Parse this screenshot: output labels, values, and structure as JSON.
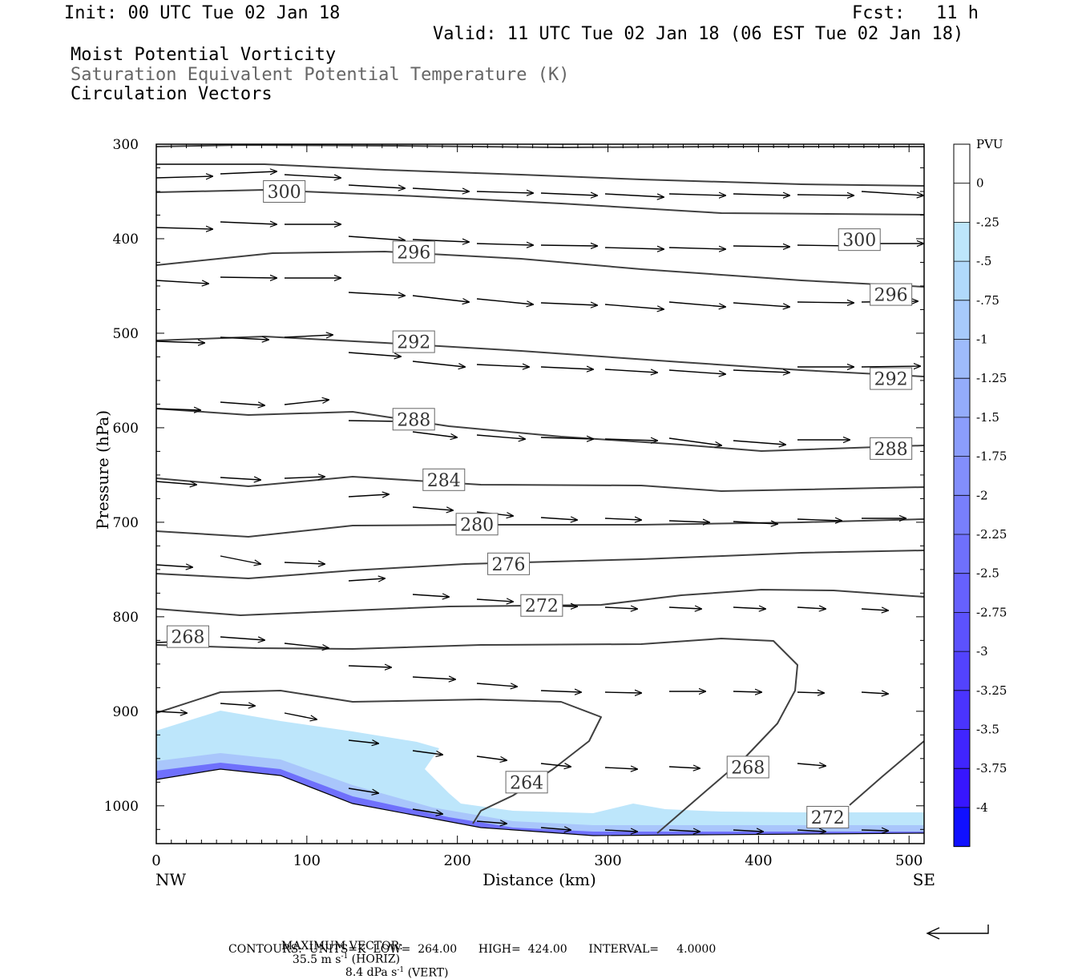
{
  "header": {
    "init": "Init: 00 UTC Tue 02 Jan 18",
    "fcst_label": "Fcst:",
    "fcst_value": "11 h",
    "valid": "Valid: 11 UTC Tue 02 Jan 18 (06 EST Tue 02 Jan 18)",
    "field1": "Moist Potential Vorticity",
    "field2": "Saturation Equivalent Potential Temperature (K)",
    "field3": "Circulation Vectors"
  },
  "footer": {
    "max_vector_label": "MAXIMUM VECTOR:",
    "horiz": "35.5 m s",
    "horiz_sup": "-1",
    "horiz_tail": " (HORIZ)",
    "vert": "8.4 dPa s",
    "vert_sup": "-1",
    "vert_tail": " (VERT)",
    "contours": "CONTOURS:  UNITS=K  LOW=  264.00      HIGH=  424.00      INTERVAL=     4.0000"
  },
  "colors": {
    "contour": "#404040",
    "mpv_light": "#bde6fb",
    "mpv_dark": "#1010ff",
    "axis": "#000000"
  },
  "chart_data": {
    "type": "cross-section",
    "xlabel": "Distance (km)",
    "ylabel": "Pressure (hPa)",
    "xlim": [
      0,
      510
    ],
    "ylim": [
      1040,
      300
    ],
    "x_ticks": [
      0,
      100,
      200,
      300,
      400,
      500
    ],
    "y_ticks": [
      300,
      400,
      500,
      600,
      700,
      800,
      900,
      1000
    ],
    "x_end_labels": {
      "left": "NW",
      "right": "SE"
    },
    "colorbar": {
      "title": "PVU",
      "levels": [
        "0",
        "-.25",
        "-.5",
        "-.75",
        "-1",
        "-1.25",
        "-1.5",
        "-1.75",
        "-2",
        "-2.25",
        "-2.5",
        "-2.75",
        "-3",
        "-3.25",
        "-3.5",
        "-3.75",
        "-4"
      ],
      "colors": [
        "#ffffff",
        "#ffffff",
        "#bde6fb",
        "#b0d9fb",
        "#a7cafb",
        "#9ebbfb",
        "#94acfb",
        "#8b9dfc",
        "#828efc",
        "#787ffc",
        "#6f70fc",
        "#6661fd",
        "#5c52fd",
        "#5343fd",
        "#4a34fe",
        "#4025fe",
        "#3716fe",
        "#1010ff"
      ]
    },
    "contour_labels": [
      {
        "text": "300",
        "x": 85,
        "p": 350
      },
      {
        "text": "300",
        "x": 467,
        "p": 401
      },
      {
        "text": "296",
        "x": 171,
        "p": 414
      },
      {
        "text": "296",
        "x": 488,
        "p": 459
      },
      {
        "text": "292",
        "x": 171,
        "p": 509
      },
      {
        "text": "292",
        "x": 488,
        "p": 548
      },
      {
        "text": "288",
        "x": 171,
        "p": 591
      },
      {
        "text": "288",
        "x": 488,
        "p": 622
      },
      {
        "text": "284",
        "x": 191,
        "p": 655
      },
      {
        "text": "280",
        "x": 213,
        "p": 702
      },
      {
        "text": "276",
        "x": 234,
        "p": 744
      },
      {
        "text": "272",
        "x": 256,
        "p": 788
      },
      {
        "text": "268",
        "x": 21,
        "p": 821
      },
      {
        "text": "264",
        "x": 246,
        "p": 975
      },
      {
        "text": "268",
        "x": 393,
        "p": 959
      },
      {
        "text": "272",
        "x": 446,
        "p": 1012
      }
    ]
  }
}
